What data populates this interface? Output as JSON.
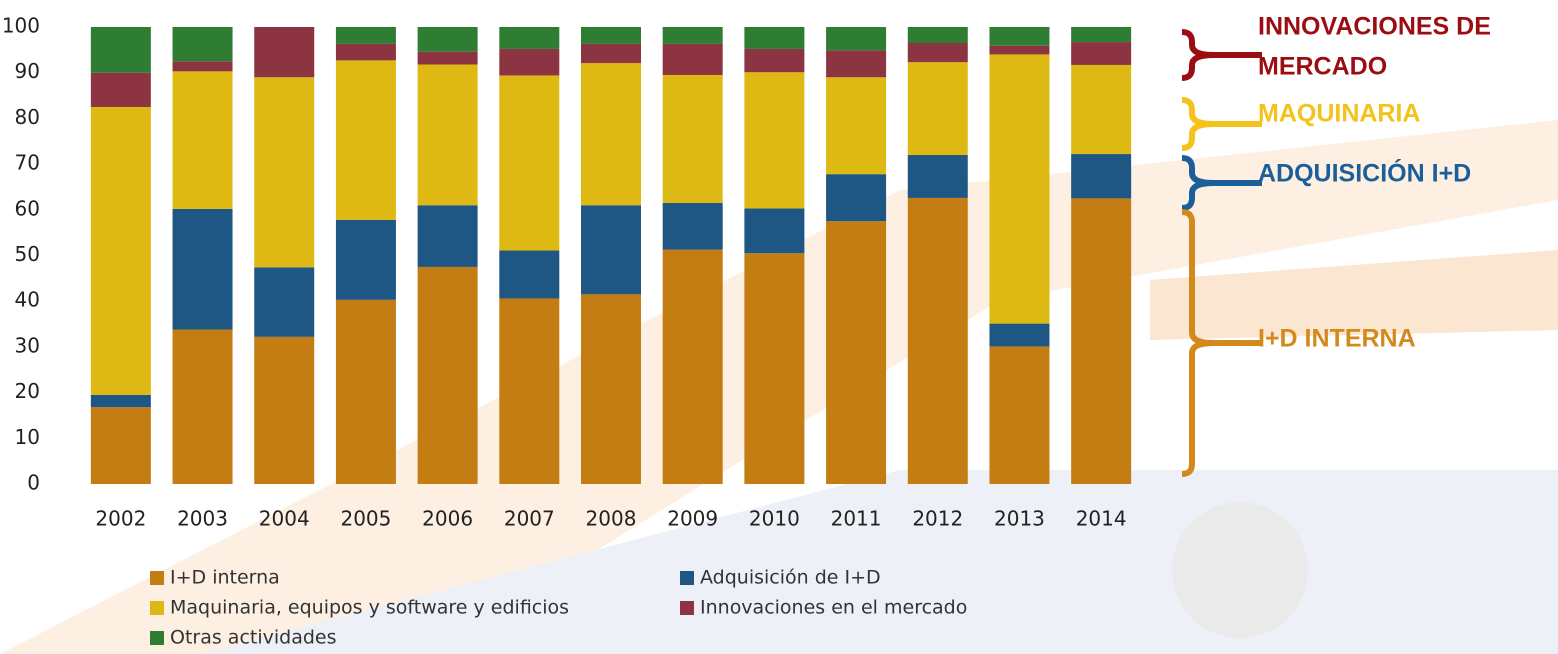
{
  "chart_data": {
    "type": "stacked_bar",
    "categories": [
      "2002",
      "2003",
      "2004",
      "2005",
      "2006",
      "2007",
      "2008",
      "2009",
      "2010",
      "2011",
      "2012",
      "2013",
      "2014"
    ],
    "series": [
      {
        "name": "I+D interna",
        "color": "#c47d12",
        "values": [
          16.8,
          33.8,
          32.2,
          40.3,
          47.5,
          40.6,
          41.5,
          51.3,
          50.5,
          57.5,
          62.6,
          30.1,
          62.5
        ]
      },
      {
        "name": "Adquisición de    I+D",
        "color": "#1f5784",
        "values": [
          2.7,
          26.4,
          15.2,
          17.5,
          13.5,
          10.5,
          19.5,
          10.2,
          9.8,
          10.3,
          9.4,
          5.0,
          9.7
        ]
      },
      {
        "name": "Maquinaria, equipos y software y edificios",
        "color": "#dfb913",
        "values": [
          63.0,
          30.1,
          41.6,
          34.9,
          30.8,
          38.3,
          31.1,
          28.0,
          29.8,
          21.2,
          20.3,
          58.9,
          19.5
        ]
      },
      {
        "name": "Innovaciones en el mercado",
        "color": "#8c3441",
        "values": [
          7.5,
          2.2,
          11.0,
          3.6,
          2.8,
          5.8,
          4.2,
          6.8,
          5.1,
          5.9,
          4.2,
          1.9,
          5.0
        ]
      },
      {
        "name": "Otras actividades",
        "color": "#2e7d32",
        "values": [
          10.0,
          7.5,
          0,
          3.7,
          5.4,
          4.8,
          3.7,
          3.7,
          4.8,
          5.1,
          3.5,
          4.1,
          3.3
        ]
      }
    ],
    "ylim": [
      0,
      100
    ],
    "yticks": [
      0,
      10,
      20,
      30,
      40,
      50,
      60,
      70,
      80,
      90,
      100
    ],
    "grid": false,
    "annotations": [
      {
        "lines": [
          "INNOVACIONES DE",
          "MERCADO"
        ],
        "color": "#9b0d12"
      },
      {
        "lines": [
          "MAQUINARIA"
        ],
        "color": "#f5c21b"
      },
      {
        "lines": [
          "ADQUISICIÓN  I+D"
        ],
        "color": "#1b5e9a"
      },
      {
        "lines": [
          "I+D INTERNA"
        ],
        "color": "#d4891c"
      }
    ]
  }
}
